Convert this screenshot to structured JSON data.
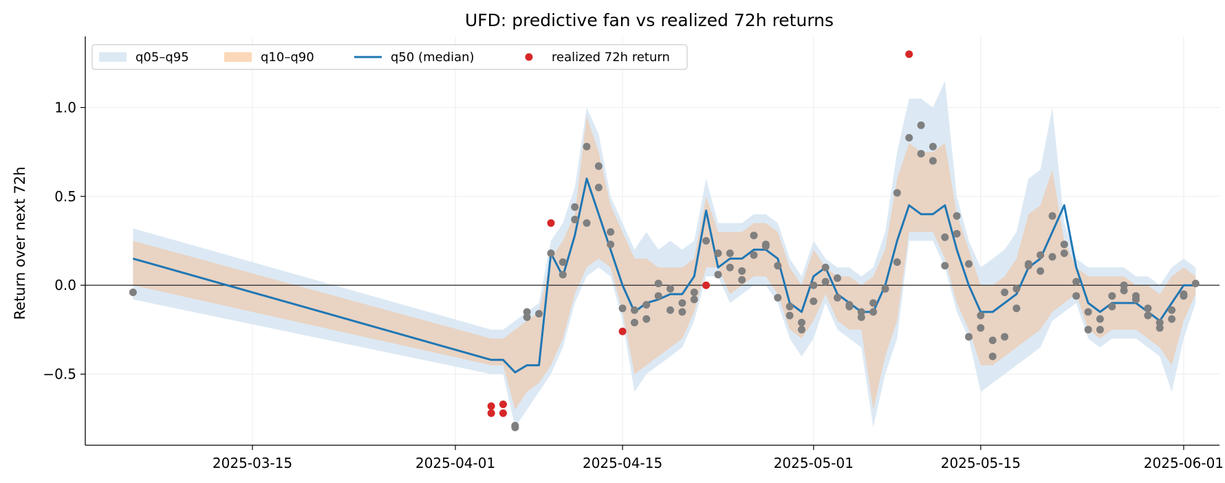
{
  "chart_data": {
    "type": "line",
    "title": "UFD: predictive fan vs realized 72h returns",
    "xlabel": "",
    "ylabel": "Return over next 72h",
    "xlim": [
      "2025-03-01",
      "2025-06-04"
    ],
    "ylim": [
      -0.9,
      1.4
    ],
    "x_ticks": [
      "2025-03-15",
      "2025-04-01",
      "2025-04-15",
      "2025-05-01",
      "2025-05-15",
      "2025-06-01"
    ],
    "y_ticks": [
      1.0,
      0.5,
      0.0,
      -0.5
    ],
    "y_tick_labels": [
      "1.0",
      "0.5",
      "0.0",
      "−0.5"
    ],
    "grid": true,
    "legend_position": "top-left",
    "legend": [
      {
        "label": "q05–q95",
        "kind": "band",
        "color": "#dce9f4"
      },
      {
        "label": "q10–q90",
        "kind": "band",
        "color": "#fbd8b8"
      },
      {
        "label": "q50 (median)",
        "kind": "line",
        "color": "#1f77b4"
      },
      {
        "label": "realized 72h return",
        "kind": "point",
        "color": "#d62728"
      }
    ],
    "colors": {
      "q05_q95": "#dce9f4",
      "q10_q90": "#fbd8b8",
      "overlap": "#e9d3c3",
      "median": "#1f77b4",
      "realized_outside": "#d62728",
      "realized_inside": "#7f7f7f",
      "zero_line": "#333333",
      "grid": "#ececec"
    },
    "bands": {
      "x": [
        "2025-03-05",
        "2025-04-04",
        "2025-04-05",
        "2025-04-06",
        "2025-04-07",
        "2025-04-08",
        "2025-04-09",
        "2025-04-10",
        "2025-04-11",
        "2025-04-12",
        "2025-04-13",
        "2025-04-14",
        "2025-04-15",
        "2025-04-16",
        "2025-04-17",
        "2025-04-18",
        "2025-04-19",
        "2025-04-20",
        "2025-04-21",
        "2025-04-22",
        "2025-04-23",
        "2025-04-24",
        "2025-04-25",
        "2025-04-26",
        "2025-04-27",
        "2025-04-28",
        "2025-04-29",
        "2025-04-30",
        "2025-05-01",
        "2025-05-02",
        "2025-05-03",
        "2025-05-04",
        "2025-05-05",
        "2025-05-06",
        "2025-05-07",
        "2025-05-08",
        "2025-05-09",
        "2025-05-10",
        "2025-05-11",
        "2025-05-12",
        "2025-05-13",
        "2025-05-14",
        "2025-05-15",
        "2025-05-16",
        "2025-05-17",
        "2025-05-18",
        "2025-05-19",
        "2025-05-20",
        "2025-05-21",
        "2025-05-22",
        "2025-05-23",
        "2025-05-24",
        "2025-05-25",
        "2025-05-26",
        "2025-05-27",
        "2025-05-28",
        "2025-05-29",
        "2025-05-30",
        "2025-05-31",
        "2025-06-01",
        "2025-06-02"
      ],
      "q05": [
        -0.08,
        -0.5,
        -0.5,
        -0.8,
        -0.7,
        -0.6,
        -0.5,
        -0.35,
        -0.1,
        0.05,
        0.1,
        0.05,
        -0.2,
        -0.6,
        -0.5,
        -0.45,
        -0.4,
        -0.35,
        -0.2,
        0.05,
        0.05,
        -0.1,
        -0.05,
        0.0,
        0.0,
        -0.1,
        -0.3,
        -0.4,
        -0.3,
        -0.1,
        -0.25,
        -0.3,
        -0.35,
        -0.8,
        -0.5,
        -0.3,
        0.25,
        0.25,
        0.25,
        0.1,
        -0.15,
        -0.3,
        -0.6,
        -0.55,
        -0.5,
        -0.45,
        -0.4,
        -0.35,
        -0.2,
        -0.15,
        -0.1,
        -0.3,
        -0.35,
        -0.3,
        -0.3,
        -0.3,
        -0.35,
        -0.4,
        -0.6,
        -0.3,
        -0.1
      ],
      "q10": [
        0.0,
        -0.45,
        -0.45,
        -0.7,
        -0.6,
        -0.55,
        -0.45,
        -0.3,
        -0.05,
        0.1,
        0.15,
        0.1,
        -0.15,
        -0.5,
        -0.45,
        -0.4,
        -0.35,
        -0.3,
        -0.15,
        0.1,
        0.1,
        -0.05,
        0.0,
        0.05,
        0.05,
        -0.05,
        -0.25,
        -0.3,
        -0.2,
        -0.05,
        -0.2,
        -0.25,
        -0.25,
        -0.7,
        -0.4,
        -0.2,
        0.3,
        0.3,
        0.3,
        0.15,
        -0.1,
        -0.25,
        -0.45,
        -0.45,
        -0.4,
        -0.35,
        -0.3,
        -0.25,
        -0.15,
        -0.1,
        -0.05,
        -0.25,
        -0.3,
        -0.25,
        -0.25,
        -0.25,
        -0.3,
        -0.35,
        -0.45,
        -0.2,
        -0.05
      ],
      "q90": [
        0.25,
        -0.3,
        -0.3,
        -0.25,
        -0.2,
        -0.15,
        0.15,
        0.25,
        0.4,
        0.95,
        0.75,
        0.45,
        0.3,
        0.15,
        0.15,
        0.1,
        0.1,
        0.1,
        0.15,
        0.5,
        0.3,
        0.3,
        0.3,
        0.35,
        0.35,
        0.3,
        0.1,
        0.0,
        0.2,
        0.1,
        0.05,
        0.05,
        0.0,
        0.05,
        0.2,
        0.6,
        0.8,
        0.75,
        0.75,
        0.8,
        0.4,
        0.2,
        0.0,
        0.0,
        0.05,
        0.15,
        0.4,
        0.45,
        0.65,
        0.25,
        0.1,
        0.05,
        0.05,
        0.05,
        0.05,
        0.0,
        0.0,
        -0.05,
        0.05,
        0.1,
        0.05
      ],
      "q95": [
        0.32,
        -0.25,
        -0.25,
        -0.2,
        -0.15,
        -0.1,
        0.25,
        0.35,
        0.55,
        1.0,
        0.85,
        0.5,
        0.35,
        0.2,
        0.3,
        0.2,
        0.25,
        0.2,
        0.25,
        0.6,
        0.35,
        0.35,
        0.35,
        0.4,
        0.4,
        0.35,
        0.15,
        0.05,
        0.25,
        0.15,
        0.1,
        0.1,
        0.05,
        0.1,
        0.3,
        0.75,
        1.05,
        1.05,
        1.0,
        1.15,
        0.5,
        0.25,
        0.1,
        0.15,
        0.2,
        0.3,
        0.6,
        0.65,
        1.0,
        0.35,
        0.15,
        0.1,
        0.1,
        0.1,
        0.1,
        0.05,
        0.05,
        0.0,
        0.1,
        0.15,
        0.1
      ]
    },
    "median": {
      "x": [
        "2025-03-05",
        "2025-04-04",
        "2025-04-05",
        "2025-04-06",
        "2025-04-07",
        "2025-04-08",
        "2025-04-09",
        "2025-04-10",
        "2025-04-11",
        "2025-04-12",
        "2025-04-13",
        "2025-04-14",
        "2025-04-15",
        "2025-04-16",
        "2025-04-17",
        "2025-04-18",
        "2025-04-19",
        "2025-04-20",
        "2025-04-21",
        "2025-04-22",
        "2025-04-23",
        "2025-04-24",
        "2025-04-25",
        "2025-04-26",
        "2025-04-27",
        "2025-04-28",
        "2025-04-29",
        "2025-04-30",
        "2025-05-01",
        "2025-05-02",
        "2025-05-03",
        "2025-05-04",
        "2025-05-05",
        "2025-05-06",
        "2025-05-07",
        "2025-05-08",
        "2025-05-09",
        "2025-05-10",
        "2025-05-11",
        "2025-05-12",
        "2025-05-13",
        "2025-05-14",
        "2025-05-15",
        "2025-05-16",
        "2025-05-17",
        "2025-05-18",
        "2025-05-19",
        "2025-05-20",
        "2025-05-21",
        "2025-05-22",
        "2025-05-23",
        "2025-05-24",
        "2025-05-25",
        "2025-05-26",
        "2025-05-27",
        "2025-05-28",
        "2025-05-29",
        "2025-05-30",
        "2025-05-31",
        "2025-06-01",
        "2025-06-02"
      ],
      "y": [
        0.15,
        -0.42,
        -0.42,
        -0.49,
        -0.45,
        -0.45,
        0.18,
        0.05,
        0.28,
        0.6,
        0.4,
        0.2,
        0.0,
        -0.15,
        -0.1,
        -0.08,
        -0.05,
        -0.05,
        0.05,
        0.42,
        0.1,
        0.15,
        0.15,
        0.2,
        0.2,
        0.15,
        -0.1,
        -0.15,
        0.05,
        0.1,
        -0.05,
        -0.1,
        -0.15,
        -0.15,
        0.0,
        0.25,
        0.45,
        0.4,
        0.4,
        0.45,
        0.2,
        0.0,
        -0.15,
        -0.15,
        -0.1,
        -0.05,
        0.1,
        0.15,
        0.3,
        0.45,
        0.1,
        -0.1,
        -0.15,
        -0.1,
        -0.1,
        -0.1,
        -0.15,
        -0.2,
        -0.1,
        0.0,
        0.0
      ]
    },
    "realized": {
      "x": [
        "2025-03-05",
        "2025-04-04",
        "2025-04-04",
        "2025-04-05",
        "2025-04-05",
        "2025-04-06",
        "2025-04-06",
        "2025-04-07",
        "2025-04-07",
        "2025-04-08",
        "2025-04-09",
        "2025-04-09",
        "2025-04-10",
        "2025-04-10",
        "2025-04-11",
        "2025-04-11",
        "2025-04-12",
        "2025-04-12",
        "2025-04-13",
        "2025-04-13",
        "2025-04-14",
        "2025-04-14",
        "2025-04-15",
        "2025-04-15",
        "2025-04-16",
        "2025-04-16",
        "2025-04-17",
        "2025-04-17",
        "2025-04-18",
        "2025-04-18",
        "2025-04-19",
        "2025-04-19",
        "2025-04-20",
        "2025-04-20",
        "2025-04-21",
        "2025-04-21",
        "2025-04-22",
        "2025-04-22",
        "2025-04-23",
        "2025-04-23",
        "2025-04-24",
        "2025-04-24",
        "2025-04-25",
        "2025-04-25",
        "2025-04-26",
        "2025-04-26",
        "2025-04-27",
        "2025-04-27",
        "2025-04-28",
        "2025-04-28",
        "2025-04-29",
        "2025-04-29",
        "2025-04-30",
        "2025-04-30",
        "2025-05-01",
        "2025-05-01",
        "2025-05-02",
        "2025-05-02",
        "2025-05-03",
        "2025-05-03",
        "2025-05-04",
        "2025-05-04",
        "2025-05-05",
        "2025-05-05",
        "2025-05-06",
        "2025-05-06",
        "2025-05-07",
        "2025-05-07",
        "2025-05-08",
        "2025-05-08",
        "2025-05-09",
        "2025-05-09",
        "2025-05-10",
        "2025-05-10",
        "2025-05-11",
        "2025-05-11",
        "2025-05-12",
        "2025-05-12",
        "2025-05-13",
        "2025-05-13",
        "2025-05-14",
        "2025-05-14",
        "2025-05-15",
        "2025-05-15",
        "2025-05-16",
        "2025-05-16",
        "2025-05-17",
        "2025-05-17",
        "2025-05-18",
        "2025-05-18",
        "2025-05-19",
        "2025-05-19",
        "2025-05-20",
        "2025-05-20",
        "2025-05-21",
        "2025-05-21",
        "2025-05-22",
        "2025-05-22",
        "2025-05-23",
        "2025-05-23",
        "2025-05-24",
        "2025-05-24",
        "2025-05-25",
        "2025-05-25",
        "2025-05-26",
        "2025-05-26",
        "2025-05-27",
        "2025-05-27",
        "2025-05-28",
        "2025-05-28",
        "2025-05-29",
        "2025-05-29",
        "2025-05-30",
        "2025-05-30",
        "2025-05-31",
        "2025-05-31",
        "2025-06-01",
        "2025-06-01",
        "2025-06-02"
      ],
      "y": [
        -0.04,
        -0.72,
        -0.68,
        -0.67,
        -0.72,
        -0.79,
        -0.8,
        -0.18,
        -0.15,
        -0.16,
        0.35,
        0.18,
        0.06,
        0.13,
        0.37,
        0.44,
        0.35,
        0.78,
        0.55,
        0.67,
        0.23,
        0.3,
        -0.13,
        -0.26,
        -0.14,
        -0.21,
        -0.11,
        -0.19,
        -0.06,
        0.01,
        -0.02,
        -0.14,
        -0.15,
        -0.1,
        -0.08,
        -0.04,
        0.0,
        0.25,
        0.18,
        0.06,
        0.18,
        0.1,
        0.08,
        0.03,
        0.17,
        0.28,
        0.22,
        0.23,
        0.11,
        -0.07,
        -0.12,
        -0.17,
        -0.25,
        -0.21,
        -0.09,
        0.0,
        0.1,
        0.02,
        0.04,
        -0.07,
        -0.11,
        -0.12,
        -0.18,
        -0.15,
        -0.15,
        -0.1,
        -0.02,
        -0.02,
        0.13,
        0.52,
        1.3,
        0.83,
        0.9,
        0.74,
        0.7,
        0.78,
        0.11,
        0.27,
        0.39,
        0.29,
        0.12,
        -0.29,
        -0.24,
        -0.17,
        -0.4,
        -0.31,
        -0.29,
        -0.04,
        -0.02,
        -0.13,
        0.11,
        0.12,
        0.17,
        0.08,
        0.16,
        0.39,
        0.23,
        0.18,
        0.02,
        -0.06,
        -0.15,
        -0.25,
        -0.25,
        -0.19,
        -0.12,
        -0.06,
        0.0,
        -0.03,
        -0.06,
        -0.08,
        -0.13,
        -0.17,
        -0.24,
        -0.21,
        -0.14,
        -0.19,
        -0.05,
        -0.06,
        0.01
      ]
    }
  }
}
